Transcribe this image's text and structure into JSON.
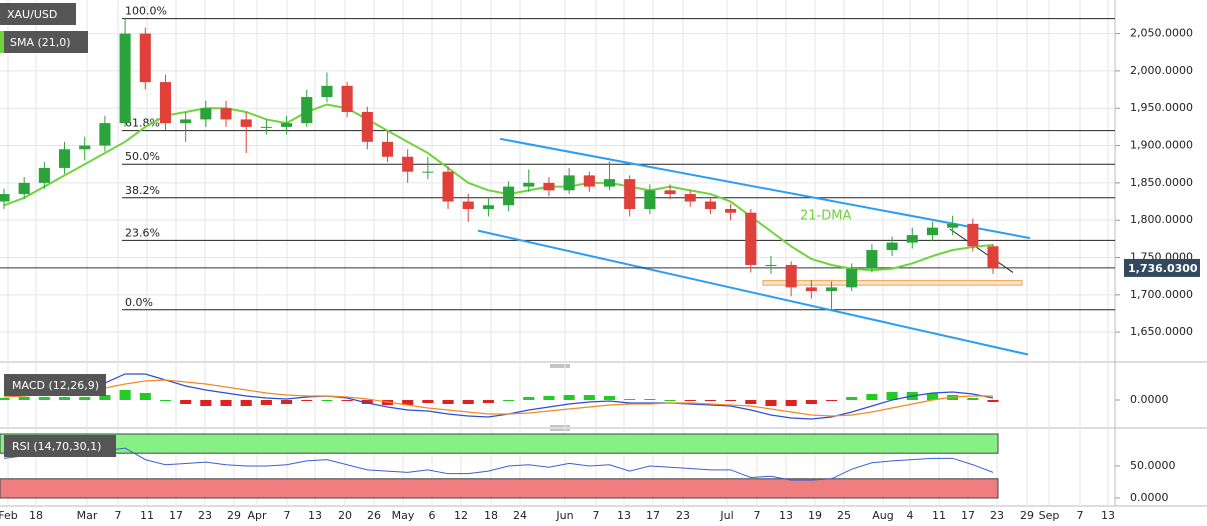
{
  "chart_data": {
    "type": "candlestick",
    "symbol": "XAU/USD",
    "sma_label": "SMA (21,0)",
    "sma_annotation": "21-DMA",
    "macd_label": "MACD (12,26,9)",
    "rsi_label": "RSI (14,70,30,1)",
    "categories": [
      "Feb",
      "18",
      "Mar",
      "7",
      "11",
      "17",
      "23",
      "29",
      "Apr",
      "7",
      "13",
      "20",
      "26",
      "May",
      "6",
      "12",
      "18",
      "24",
      "Jun",
      "7",
      "13",
      "17",
      "23",
      "Jul",
      "7",
      "13",
      "19",
      "25",
      "Aug",
      "4",
      "11",
      "17",
      "23",
      "29",
      "Sep",
      "7",
      "13"
    ],
    "up_color": "#2aa33a",
    "down_color": "#e0403a",
    "sma_color": "#6fd43c",
    "ohlc": [
      [
        1825,
        1842,
        1815,
        1835
      ],
      [
        1835,
        1858,
        1828,
        1850
      ],
      [
        1850,
        1878,
        1842,
        1870
      ],
      [
        1870,
        1905,
        1862,
        1895
      ],
      [
        1895,
        1912,
        1880,
        1900
      ],
      [
        1900,
        1940,
        1892,
        1930
      ],
      [
        1930,
        2070,
        1925,
        2050
      ],
      [
        2050,
        2058,
        1975,
        1985
      ],
      [
        1985,
        1995,
        1920,
        1930
      ],
      [
        1930,
        1945,
        1905,
        1935
      ],
      [
        1935,
        1960,
        1925,
        1950
      ],
      [
        1950,
        1960,
        1925,
        1935
      ],
      [
        1935,
        1945,
        1890,
        1925
      ],
      [
        1925,
        1935,
        1915,
        1925
      ],
      [
        1925,
        1940,
        1915,
        1930
      ],
      [
        1930,
        1975,
        1925,
        1965
      ],
      [
        1965,
        1998,
        1958,
        1980
      ],
      [
        1980,
        1985,
        1938,
        1945
      ],
      [
        1945,
        1952,
        1895,
        1905
      ],
      [
        1905,
        1920,
        1878,
        1885
      ],
      [
        1885,
        1895,
        1850,
        1865
      ],
      [
        1865,
        1885,
        1855,
        1865
      ],
      [
        1865,
        1872,
        1815,
        1825
      ],
      [
        1825,
        1835,
        1798,
        1815
      ],
      [
        1815,
        1830,
        1805,
        1820
      ],
      [
        1820,
        1852,
        1812,
        1845
      ],
      [
        1845,
        1868,
        1838,
        1850
      ],
      [
        1850,
        1858,
        1832,
        1840
      ],
      [
        1840,
        1870,
        1835,
        1860
      ],
      [
        1860,
        1865,
        1838,
        1845
      ],
      [
        1845,
        1878,
        1840,
        1855
      ],
      [
        1855,
        1860,
        1805,
        1815
      ],
      [
        1815,
        1848,
        1808,
        1840
      ],
      [
        1840,
        1848,
        1828,
        1835
      ],
      [
        1835,
        1840,
        1818,
        1825
      ],
      [
        1825,
        1830,
        1808,
        1815
      ],
      [
        1815,
        1822,
        1800,
        1810
      ],
      [
        1810,
        1815,
        1730,
        1740
      ],
      [
        1740,
        1752,
        1728,
        1740
      ],
      [
        1740,
        1745,
        1698,
        1710
      ],
      [
        1710,
        1720,
        1695,
        1705
      ],
      [
        1705,
        1718,
        1680,
        1710
      ],
      [
        1710,
        1742,
        1705,
        1735
      ],
      [
        1735,
        1768,
        1730,
        1760
      ],
      [
        1760,
        1778,
        1752,
        1770
      ],
      [
        1770,
        1790,
        1762,
        1780
      ],
      [
        1780,
        1798,
        1772,
        1790
      ],
      [
        1790,
        1806,
        1780,
        1795
      ],
      [
        1795,
        1802,
        1758,
        1765
      ],
      [
        1765,
        1768,
        1728,
        1736
      ]
    ],
    "sma": [
      1820,
      1830,
      1845,
      1860,
      1875,
      1890,
      1905,
      1925,
      1940,
      1945,
      1950,
      1950,
      1945,
      1935,
      1930,
      1945,
      1955,
      1950,
      1935,
      1920,
      1905,
      1890,
      1870,
      1850,
      1840,
      1835,
      1840,
      1845,
      1845,
      1850,
      1850,
      1845,
      1840,
      1845,
      1840,
      1835,
      1825,
      1805,
      1785,
      1765,
      1748,
      1740,
      1735,
      1733,
      1735,
      1742,
      1752,
      1760,
      1764,
      1767
    ],
    "fib_levels": [
      {
        "label": "100.0%",
        "price": 2070
      },
      {
        "label": "61.8%",
        "price": 1920
      },
      {
        "label": "50.0%",
        "price": 1875
      },
      {
        "label": "38.2%",
        "price": 1830
      },
      {
        "label": "23.6%",
        "price": 1773
      },
      {
        "label": "0.0%",
        "price": 1680
      }
    ],
    "channel_upper": [
      1909,
      1776
    ],
    "channel_lower": [
      1786,
      1620
    ],
    "short_trend": [
      1788,
      1730
    ],
    "support_zone": [
      1713,
      1719
    ],
    "last_price": 1736.03,
    "last_price_label": "1,736.0300",
    "ylim": [
      1610,
      2095
    ],
    "yticks": [
      {
        "value": 2050,
        "label": "2,050.0000"
      },
      {
        "value": 2000,
        "label": "2,000.0000"
      },
      {
        "value": 1950,
        "label": "1,950.0000"
      },
      {
        "value": 1900,
        "label": "1,900.0000"
      },
      {
        "value": 1850,
        "label": "1,850.0000"
      },
      {
        "value": 1800,
        "label": "1,800.0000"
      },
      {
        "value": 1750,
        "label": "1,750.0000"
      },
      {
        "value": 1700,
        "label": "1,700.0000"
      },
      {
        "value": 1650,
        "label": "1,650.0000"
      }
    ],
    "macd": [
      5,
      7,
      9,
      11,
      13,
      17,
      26,
      26,
      20,
      14,
      10,
      7,
      4,
      2,
      1,
      3,
      4,
      2,
      -3,
      -7,
      -10,
      -11,
      -14,
      -16,
      -17,
      -14,
      -10,
      -7,
      -4,
      -2,
      -1,
      -3,
      -3,
      -3,
      -4,
      -5,
      -6,
      -10,
      -15,
      -18,
      -19,
      -17,
      -12,
      -6,
      0,
      4,
      7,
      8,
      6,
      2
    ],
    "signal": [
      3,
      4,
      6,
      8,
      10,
      12,
      16,
      19,
      20,
      18,
      16,
      13,
      10,
      7,
      5,
      4,
      4,
      3,
      1,
      -2,
      -5,
      -8,
      -10,
      -12,
      -14,
      -14,
      -13,
      -11,
      -9,
      -7,
      -5,
      -4,
      -4,
      -3,
      -3,
      -4,
      -5,
      -6,
      -9,
      -12,
      -15,
      -16,
      -15,
      -12,
      -8,
      -4,
      0,
      3,
      4,
      4
    ],
    "histogram": [
      2,
      3,
      3,
      3,
      3,
      5,
      10,
      7,
      0,
      -4,
      -6,
      -6,
      -6,
      -5,
      -4,
      -1,
      0,
      -1,
      -4,
      -5,
      -5,
      -3,
      -4,
      -4,
      -3,
      0,
      3,
      4,
      5,
      5,
      4,
      1,
      1,
      0,
      -1,
      -1,
      -1,
      -4,
      -6,
      -6,
      -4,
      -1,
      3,
      6,
      8,
      8,
      7,
      5,
      2,
      -2
    ],
    "macd_ylim": [
      -25,
      30
    ],
    "macd_yticks": [
      {
        "value": 0,
        "label": "0.0000"
      }
    ],
    "rsi": [
      62,
      66,
      70,
      72,
      70,
      74,
      78,
      60,
      52,
      54,
      56,
      52,
      50,
      50,
      52,
      58,
      60,
      52,
      44,
      42,
      40,
      44,
      38,
      38,
      42,
      50,
      52,
      48,
      54,
      50,
      52,
      42,
      50,
      48,
      46,
      44,
      44,
      32,
      34,
      28,
      28,
      30,
      45,
      55,
      58,
      60,
      62,
      62,
      52,
      40
    ],
    "rsi_upper": 70,
    "rsi_lower": 30,
    "rsi_ylim": [
      0,
      100
    ],
    "rsi_yticks": [
      {
        "value": 50,
        "label": "50.0000"
      },
      {
        "value": 0,
        "label": "0.0000"
      }
    ]
  }
}
